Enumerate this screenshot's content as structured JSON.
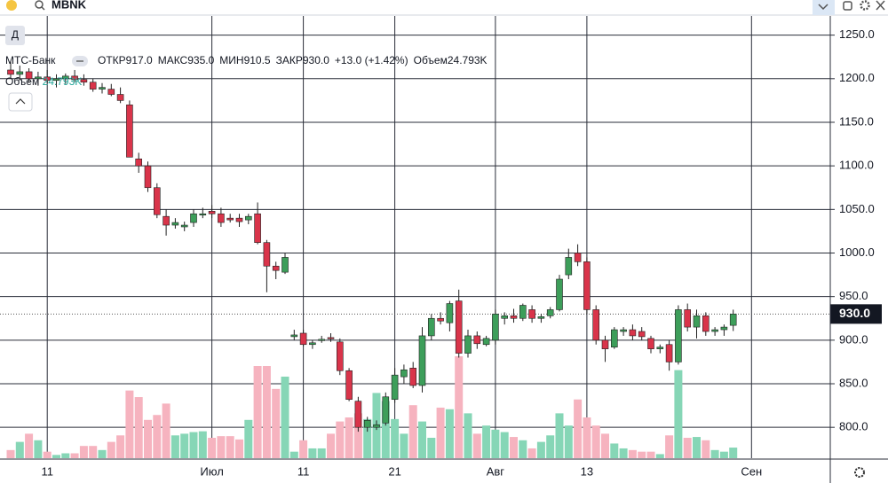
{
  "toolbar": {
    "symbol": "MBNK",
    "interval_button": "Д"
  },
  "chart_data": {
    "type": "candlestick",
    "title": "МТС-Банк",
    "ohlc_legend": [
      {
        "key": "ОТКР",
        "text": "917.0"
      },
      {
        "key": "МАКС",
        "text": "935.0"
      },
      {
        "key": "МИН",
        "text": "910.5"
      },
      {
        "key": "ЗАКР",
        "text": "930.0"
      }
    ],
    "change_label": "+13.0 (+1.42%)",
    "volume_name": "Объем",
    "volume_label": "24.793K",
    "price_label": "930.0",
    "up_color": "#3d9e5a",
    "down_color": "#d9344a",
    "volume_up_color": "#86d6b6",
    "volume_down_color": "#f6b3bf",
    "grid": true,
    "ylim": [
      764.6,
      1272
    ],
    "yticks": [
      {
        "value": 1250,
        "label": "1250.0"
      },
      {
        "value": 1200,
        "label": "1200.0"
      },
      {
        "value": 1150,
        "label": "1150.0"
      },
      {
        "value": 1100,
        "label": "1100.0"
      },
      {
        "value": 1050,
        "label": "1050.0"
      },
      {
        "value": 1000,
        "label": "1000.0"
      },
      {
        "value": 950,
        "label": "950.0"
      },
      {
        "value": 900,
        "label": "900.0"
      },
      {
        "value": 850,
        "label": "850.0"
      },
      {
        "value": 800,
        "label": "800.0"
      }
    ],
    "categories": [
      null,
      null,
      null,
      null,
      "11",
      null,
      null,
      null,
      null,
      null,
      null,
      null,
      null,
      null,
      null,
      null,
      null,
      null,
      null,
      null,
      null,
      null,
      "Июл",
      null,
      null,
      null,
      null,
      null,
      null,
      null,
      null,
      null,
      "11",
      null,
      null,
      null,
      null,
      null,
      null,
      null,
      null,
      null,
      "21",
      null,
      null,
      null,
      null,
      null,
      null,
      null,
      null,
      null,
      null,
      "Авг",
      null,
      null,
      null,
      null,
      null,
      null,
      null,
      null,
      null,
      "13",
      null,
      null,
      null,
      null,
      null,
      null,
      null,
      null,
      null,
      null,
      null,
      null,
      null,
      null,
      null,
      null,
      null,
      "Сен"
    ],
    "open": [
      1210,
      1205,
      1208,
      1200,
      1202,
      1198,
      1200,
      1203,
      1199,
      1196,
      1188,
      1188,
      1182,
      1170,
      1108,
      1100,
      1075,
      1042,
      1032,
      1030,
      1035,
      1045,
      1048,
      1045,
      1040,
      1040,
      1038,
      1045,
      1012,
      985,
      978,
      904,
      908,
      895,
      900,
      903,
      898,
      865,
      830,
      800,
      800,
      805,
      832,
      858,
      868,
      848,
      905,
      925,
      920,
      945,
      885,
      905,
      895,
      900,
      925,
      928,
      925,
      935,
      925,
      928,
      935,
      975,
      1000,
      990,
      935,
      900,
      892,
      910,
      912,
      910,
      902,
      890,
      895,
      875,
      935,
      915,
      928,
      910,
      912,
      917,
      null,
      null
    ],
    "high": [
      1220,
      1215,
      1212,
      1208,
      1210,
      1205,
      1206,
      1210,
      1205,
      1200,
      1195,
      1194,
      1190,
      1175,
      1115,
      1105,
      1080,
      1050,
      1040,
      1036,
      1050,
      1052,
      1055,
      1052,
      1045,
      1045,
      1045,
      1058,
      1015,
      990,
      1000,
      912,
      912,
      900,
      905,
      908,
      902,
      868,
      835,
      812,
      808,
      840,
      868,
      872,
      875,
      915,
      930,
      932,
      945,
      958,
      912,
      910,
      905,
      935,
      932,
      936,
      942,
      940,
      930,
      938,
      975,
      1005,
      1010,
      995,
      940,
      905,
      915,
      915,
      918,
      915,
      905,
      895,
      900,
      940,
      942,
      935,
      932,
      915,
      918,
      935,
      null,
      null
    ],
    "low": [
      1200,
      1198,
      1195,
      1192,
      1195,
      1190,
      1194,
      1196,
      1192,
      1185,
      1183,
      1180,
      1172,
      1110,
      1092,
      1070,
      1040,
      1020,
      1028,
      1025,
      1030,
      1040,
      1040,
      1030,
      1035,
      1030,
      1033,
      1010,
      955,
      970,
      976,
      900,
      893,
      890,
      897,
      898,
      860,
      830,
      795,
      795,
      797,
      802,
      828,
      850,
      845,
      840,
      900,
      918,
      910,
      880,
      880,
      890,
      893,
      895,
      918,
      920,
      922,
      920,
      920,
      925,
      933,
      970,
      985,
      930,
      895,
      875,
      890,
      905,
      900,
      900,
      885,
      885,
      865,
      872,
      910,
      902,
      905,
      905,
      905,
      910.5,
      null,
      null
    ],
    "close": [
      1205,
      1208,
      1200,
      1202,
      1198,
      1200,
      1203,
      1199,
      1196,
      1188,
      1190,
      1182,
      1175,
      1110,
      1100,
      1075,
      1044,
      1032,
      1035,
      1032,
      1045,
      1045,
      1045,
      1035,
      1038,
      1036,
      1042,
      1012,
      985,
      980,
      995,
      906,
      895,
      897,
      901,
      902,
      865,
      832,
      800,
      808,
      803,
      835,
      860,
      866,
      848,
      905,
      925,
      922,
      942,
      885,
      905,
      896,
      902,
      930,
      928,
      925,
      940,
      925,
      927,
      935,
      970,
      995,
      990,
      935,
      900,
      890,
      912,
      912,
      905,
      904,
      890,
      892,
      875,
      935,
      915,
      928,
      910,
      912,
      915,
      930,
      null,
      null
    ],
    "volume": [
      19000,
      38100,
      57200,
      41900,
      15200,
      7600,
      11400,
      11400,
      28600,
      28600,
      19000,
      38100,
      53300,
      158200,
      142900,
      89500,
      101000,
      127700,
      53300,
      57200,
      61000,
      62900,
      47700,
      51500,
      51500,
      43800,
      89500,
      215500,
      215500,
      162000,
      190700,
      15200,
      41900,
      22900,
      22900,
      57200,
      85800,
      95300,
      104900,
      91500,
      152500,
      133500,
      91500,
      57200,
      123900,
      85800,
      47700,
      118200,
      114400,
      238300,
      104900,
      57200,
      76300,
      66700,
      61000,
      49600,
      41900,
      22900,
      38100,
      53300,
      104900,
      76300,
      137300,
      95300,
      76300,
      57200,
      34300,
      22900,
      19000,
      15200,
      15200,
      9500,
      53300,
      205900,
      47700,
      49600,
      41900,
      19000,
      15200,
      24793,
      null,
      null
    ]
  }
}
